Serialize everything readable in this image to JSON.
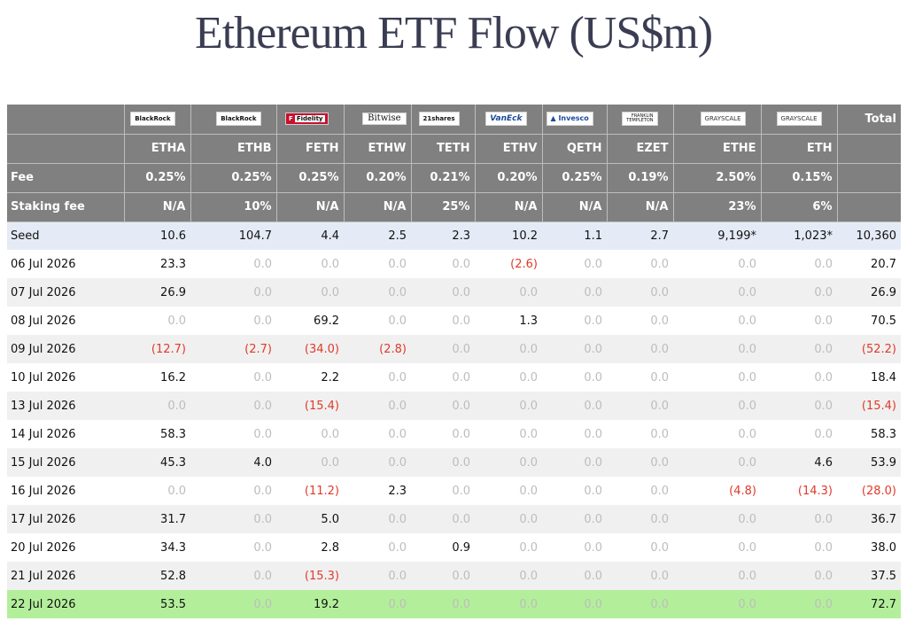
{
  "title": "Ethereum ETF Flow (US$m)",
  "chart_data": {
    "type": "table",
    "title": "Ethereum ETF Flow (US$m)",
    "issuers": [
      "BlackRock",
      "BlackRock",
      "Fidelity",
      "Bitwise",
      "21shares",
      "VanEck",
      "Invesco",
      "Franklin Templeton",
      "Grayscale",
      "Grayscale"
    ],
    "columns": [
      "ETHA",
      "ETHB",
      "FETH",
      "ETHW",
      "TETH",
      "ETHV",
      "QETH",
      "EZET",
      "ETHE",
      "ETH"
    ],
    "total_label": "Total",
    "fee_label": "Fee",
    "fees": [
      "0.25%",
      "0.25%",
      "0.25%",
      "0.20%",
      "0.21%",
      "0.20%",
      "0.25%",
      "0.19%",
      "2.50%",
      "0.15%",
      ""
    ],
    "staking_fee_label": "Staking fee",
    "staking_fees": [
      "N/A",
      "10%",
      "N/A",
      "N/A",
      "25%",
      "N/A",
      "N/A",
      "N/A",
      "23%",
      "6%",
      ""
    ],
    "seed_label": "Seed",
    "seed": [
      "10.6",
      "104.7",
      "4.4",
      "2.5",
      "2.3",
      "10.2",
      "1.1",
      "2.7",
      "9,199*",
      "1,023*",
      "10,360"
    ],
    "rows": [
      {
        "date": "06 Jul 2026",
        "values": [
          "23.3",
          "0.0",
          "0.0",
          "0.0",
          "0.0",
          "(2.6)",
          "0.0",
          "0.0",
          "0.0",
          "0.0",
          "20.7"
        ]
      },
      {
        "date": "07 Jul 2026",
        "values": [
          "26.9",
          "0.0",
          "0.0",
          "0.0",
          "0.0",
          "0.0",
          "0.0",
          "0.0",
          "0.0",
          "0.0",
          "26.9"
        ]
      },
      {
        "date": "08 Jul 2026",
        "values": [
          "0.0",
          "0.0",
          "69.2",
          "0.0",
          "0.0",
          "1.3",
          "0.0",
          "0.0",
          "0.0",
          "0.0",
          "70.5"
        ]
      },
      {
        "date": "09 Jul 2026",
        "values": [
          "(12.7)",
          "(2.7)",
          "(34.0)",
          "(2.8)",
          "0.0",
          "0.0",
          "0.0",
          "0.0",
          "0.0",
          "0.0",
          "(52.2)"
        ]
      },
      {
        "date": "10 Jul 2026",
        "values": [
          "16.2",
          "0.0",
          "2.2",
          "0.0",
          "0.0",
          "0.0",
          "0.0",
          "0.0",
          "0.0",
          "0.0",
          "18.4"
        ]
      },
      {
        "date": "13 Jul 2026",
        "values": [
          "0.0",
          "0.0",
          "(15.4)",
          "0.0",
          "0.0",
          "0.0",
          "0.0",
          "0.0",
          "0.0",
          "0.0",
          "(15.4)"
        ]
      },
      {
        "date": "14 Jul 2026",
        "values": [
          "58.3",
          "0.0",
          "0.0",
          "0.0",
          "0.0",
          "0.0",
          "0.0",
          "0.0",
          "0.0",
          "0.0",
          "58.3"
        ]
      },
      {
        "date": "15 Jul 2026",
        "values": [
          "45.3",
          "4.0",
          "0.0",
          "0.0",
          "0.0",
          "0.0",
          "0.0",
          "0.0",
          "0.0",
          "4.6",
          "53.9"
        ]
      },
      {
        "date": "16 Jul 2026",
        "values": [
          "0.0",
          "0.0",
          "(11.2)",
          "2.3",
          "0.0",
          "0.0",
          "0.0",
          "0.0",
          "(4.8)",
          "(14.3)",
          "(28.0)"
        ]
      },
      {
        "date": "17 Jul 2026",
        "values": [
          "31.7",
          "0.0",
          "5.0",
          "0.0",
          "0.0",
          "0.0",
          "0.0",
          "0.0",
          "0.0",
          "0.0",
          "36.7"
        ]
      },
      {
        "date": "20 Jul 2026",
        "values": [
          "34.3",
          "0.0",
          "2.8",
          "0.0",
          "0.9",
          "0.0",
          "0.0",
          "0.0",
          "0.0",
          "0.0",
          "38.0"
        ]
      },
      {
        "date": "21 Jul 2026",
        "values": [
          "52.8",
          "0.0",
          "(15.3)",
          "0.0",
          "0.0",
          "0.0",
          "0.0",
          "0.0",
          "0.0",
          "0.0",
          "37.5"
        ]
      },
      {
        "date": "22 Jul 2026",
        "values": [
          "53.5",
          "0.0",
          "19.2",
          "0.0",
          "0.0",
          "0.0",
          "0.0",
          "0.0",
          "0.0",
          "0.0",
          "72.7"
        ]
      }
    ]
  },
  "logos": {
    "blackrock": "BlackRock",
    "fidelity_mark": "F",
    "fidelity": "Fidelity",
    "bitwise": "Bitwise",
    "shares21": "21shares",
    "vaneck": "VanEck",
    "invesco": "Invesco",
    "franklin_1": "FRANKLIN",
    "franklin_2": "TEMPLETON",
    "grayscale": "GRAYSCALE"
  },
  "colors": {
    "header_bg": "#808080",
    "seed_bg": "#e5ebf6",
    "alt_row_bg": "#f0f0f0",
    "latest_row_bg": "#b3ef9b",
    "negative": "#e03a2a",
    "zero": "#bdbdbd",
    "title": "#3a3d52"
  }
}
